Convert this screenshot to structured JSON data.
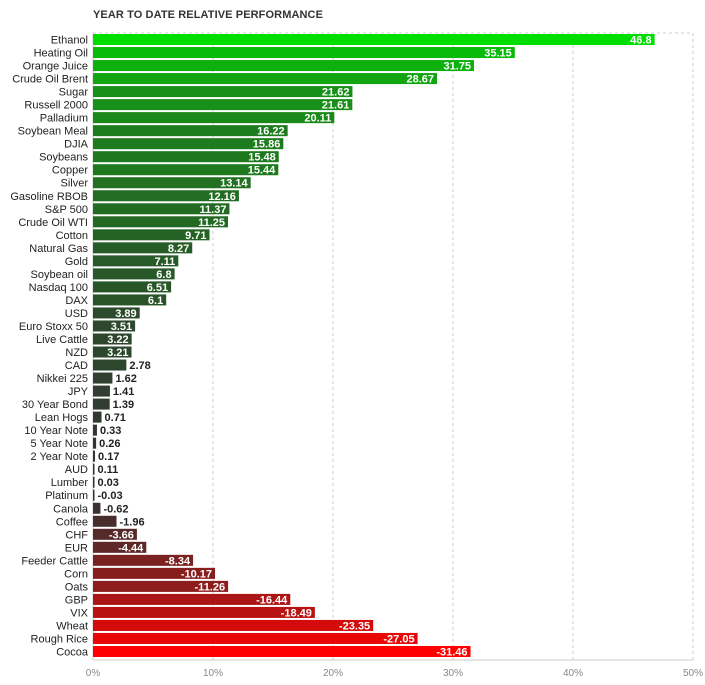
{
  "chart_data": {
    "type": "bar",
    "orientation": "horizontal",
    "title": "YEAR TO DATE RELATIVE PERFORMANCE",
    "xlim": [
      0,
      50
    ],
    "x_ticks": [
      0,
      10,
      20,
      30,
      40,
      50
    ],
    "x_tick_labels": [
      "0%",
      "10%",
      "20%",
      "30%",
      "40%",
      "50%"
    ],
    "grid": true,
    "categories": [
      "Ethanol",
      "Heating Oil",
      "Orange Juice",
      "Crude Oil Brent",
      "Sugar",
      "Russell 2000",
      "Palladium",
      "Soybean Meal",
      "DJIA",
      "Soybeans",
      "Copper",
      "Silver",
      "Gasoline RBOB",
      "S&P 500",
      "Crude Oil WTI",
      "Cotton",
      "Natural Gas",
      "Gold",
      "Soybean oil",
      "Nasdaq 100",
      "DAX",
      "USD",
      "Euro Stoxx 50",
      "Live Cattle",
      "NZD",
      "CAD",
      "Nikkei 225",
      "JPY",
      "30 Year Bond",
      "Lean Hogs",
      "10 Year Note",
      "5 Year Note",
      "2 Year Note",
      "AUD",
      "Lumber",
      "Platinum",
      "Canola",
      "Coffee",
      "CHF",
      "EUR",
      "Feeder Cattle",
      "Corn",
      "Oats",
      "GBP",
      "VIX",
      "Wheat",
      "Rough Rice",
      "Cocoa"
    ],
    "values": [
      46.8,
      35.15,
      31.75,
      28.67,
      21.62,
      21.61,
      20.11,
      16.22,
      15.86,
      15.48,
      15.44,
      13.14,
      12.16,
      11.37,
      11.25,
      9.71,
      8.27,
      7.11,
      6.8,
      6.51,
      6.1,
      3.89,
      3.51,
      3.22,
      3.21,
      2.78,
      1.62,
      1.41,
      1.39,
      0.71,
      0.33,
      0.26,
      0.17,
      0.11,
      0.03,
      -0.03,
      -0.62,
      -1.96,
      -3.66,
      -4.44,
      -8.34,
      -10.17,
      -11.26,
      -16.44,
      -18.49,
      -23.35,
      -27.05,
      -31.46
    ],
    "value_labels": [
      "46.8",
      "35.15",
      "31.75",
      "28.67",
      "21.62",
      "21.61",
      "20.11",
      "16.22",
      "15.86",
      "15.48",
      "15.44",
      "13.14",
      "12.16",
      "11.37",
      "11.25",
      "9.71",
      "8.27",
      "7.11",
      "6.8",
      "6.51",
      "6.1",
      "3.89",
      "3.51",
      "3.22",
      "3.21",
      "2.78",
      "1.62",
      "1.41",
      "1.39",
      "0.71",
      "0.33",
      "0.26",
      "0.17",
      "0.11",
      "0.03",
      "-0.03",
      "-0.62",
      "-1.96",
      "-3.66",
      "-4.44",
      "-8.34",
      "-10.17",
      "-11.26",
      "-16.44",
      "-18.49",
      "-23.35",
      "-27.05",
      "-31.46"
    ],
    "note": "bar length is proportional to absolute value; positive bars shaded green, negative bars shaded red",
    "colors": {
      "positive_strong": "#00dd00",
      "neutral": "#333333",
      "negative_strong": "#ff0000"
    }
  }
}
